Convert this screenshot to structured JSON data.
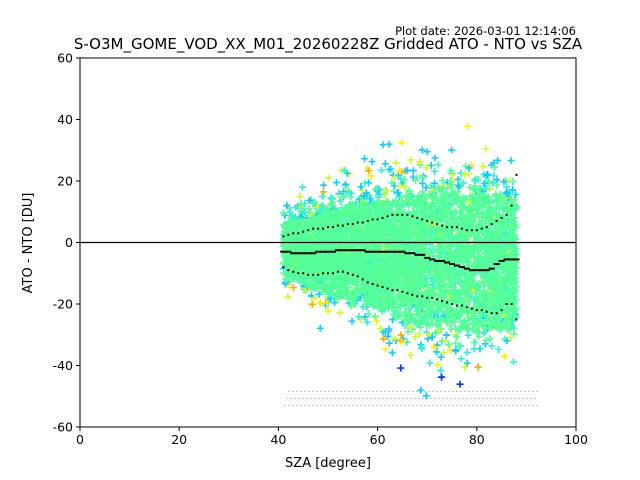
{
  "plot_date": "Plot date: 2026-03-01 12:14:06",
  "chart_data": {
    "type": "scatter",
    "title": "S-O3M_GOME_VOD_XX_M01_20260228Z Gridded ATO - NTO vs SZA",
    "xlabel": "SZA [degree]",
    "ylabel": "ATO - NTO [DU]",
    "xlim": [
      0,
      100
    ],
    "ylim": [
      -60,
      60
    ],
    "xticks": [
      "0",
      "20",
      "40",
      "60",
      "80",
      "100"
    ],
    "yticks": [
      "-60",
      "-40",
      "-20",
      "0",
      "20",
      "40",
      "60"
    ],
    "grid": false,
    "reference_line_y": 0,
    "colors": {
      "core": "#55ff99",
      "cyan": "#11ccff",
      "aqua": "#33eedd",
      "yellow_green": "#ccff33",
      "yellow": "#ffee00",
      "orange": "#ffaa00",
      "blue": "#0033ff",
      "stats": "#000000"
    },
    "scatter_envelope": {
      "sza": [
        41,
        44,
        48,
        52,
        56,
        60,
        64,
        68,
        72,
        76,
        80,
        84,
        88
      ],
      "upper": [
        15,
        18,
        22,
        27,
        30,
        33,
        35,
        40,
        45,
        42,
        40,
        42,
        35
      ],
      "lower": [
        -25,
        -27,
        -33,
        -38,
        -40,
        -45,
        -50,
        -55,
        -58,
        -58,
        -58,
        -58,
        -55
      ]
    },
    "series": [
      {
        "name": "",
        "x": [
          41,
          42,
          43,
          44,
          45,
          46,
          47,
          48,
          49,
          50,
          51,
          52,
          53,
          54,
          55,
          56,
          57,
          58,
          59,
          60,
          61,
          62,
          63,
          64,
          65,
          66,
          67,
          68,
          69,
          70,
          71,
          72,
          73,
          74,
          75,
          76,
          77,
          78,
          79,
          80,
          81,
          82,
          83,
          84,
          85,
          86,
          87,
          88
        ],
        "y": [
          2,
          2.5,
          3,
          3,
          3.5,
          4,
          4.5,
          4.5,
          4.5,
          5,
          5,
          5.5,
          5.5,
          6,
          6,
          6.5,
          6.5,
          7,
          7.5,
          7.5,
          8,
          8.5,
          9,
          9,
          9,
          9,
          8.5,
          8,
          7.5,
          7,
          6.5,
          6,
          5.5,
          5,
          5,
          5,
          4.5,
          4,
          4,
          4,
          4.5,
          5,
          6,
          7,
          8,
          9,
          12,
          22
        ]
      },
      {
        "name": "",
        "x": [
          41,
          42,
          43,
          44,
          45,
          46,
          47,
          48,
          49,
          50,
          51,
          52,
          53,
          54,
          55,
          56,
          57,
          58,
          59,
          60,
          61,
          62,
          63,
          64,
          65,
          66,
          67,
          68,
          69,
          70,
          71,
          72,
          73,
          74,
          75,
          76,
          77,
          78,
          79,
          80,
          81,
          82,
          83,
          84,
          85,
          86,
          87,
          88
        ],
        "y": [
          -3,
          -3,
          -3.5,
          -3.5,
          -3.5,
          -3.5,
          -3.5,
          -3,
          -3,
          -3,
          -3,
          -2.5,
          -2.5,
          -2.5,
          -2.5,
          -2.5,
          -2.5,
          -3,
          -3,
          -3,
          -3,
          -3,
          -3,
          -3,
          -3,
          -3.5,
          -3.5,
          -4,
          -4,
          -5,
          -5.5,
          -6,
          -6,
          -6.5,
          -7,
          -7.5,
          -8,
          -8.5,
          -9,
          -9,
          -9,
          -9,
          -8.5,
          -7,
          -6,
          -5.5,
          -5.5,
          -5.5
        ]
      },
      {
        "name": "",
        "x": [
          41,
          42,
          43,
          44,
          45,
          46,
          47,
          48,
          49,
          50,
          51,
          52,
          53,
          54,
          55,
          56,
          57,
          58,
          59,
          60,
          61,
          62,
          63,
          64,
          65,
          66,
          67,
          68,
          69,
          70,
          71,
          72,
          73,
          74,
          75,
          76,
          77,
          78,
          79,
          80,
          81,
          82,
          83,
          84,
          85,
          86,
          87,
          88
        ],
        "y": [
          -8,
          -9,
          -9.5,
          -10,
          -10,
          -10.5,
          -10.5,
          -10.5,
          -10,
          -10,
          -10,
          -9.5,
          -9.5,
          -10,
          -10.5,
          -11,
          -12,
          -13,
          -13.5,
          -14,
          -14.5,
          -15,
          -15.5,
          -15.5,
          -16,
          -16.5,
          -17,
          -17.5,
          -17.5,
          -18,
          -18,
          -18.5,
          -19,
          -19.5,
          -20,
          -20.5,
          -20.5,
          -21,
          -21.5,
          -22,
          -22,
          -22.5,
          -23,
          -23,
          -22,
          -20,
          -20,
          -25
        ]
      }
    ]
  }
}
